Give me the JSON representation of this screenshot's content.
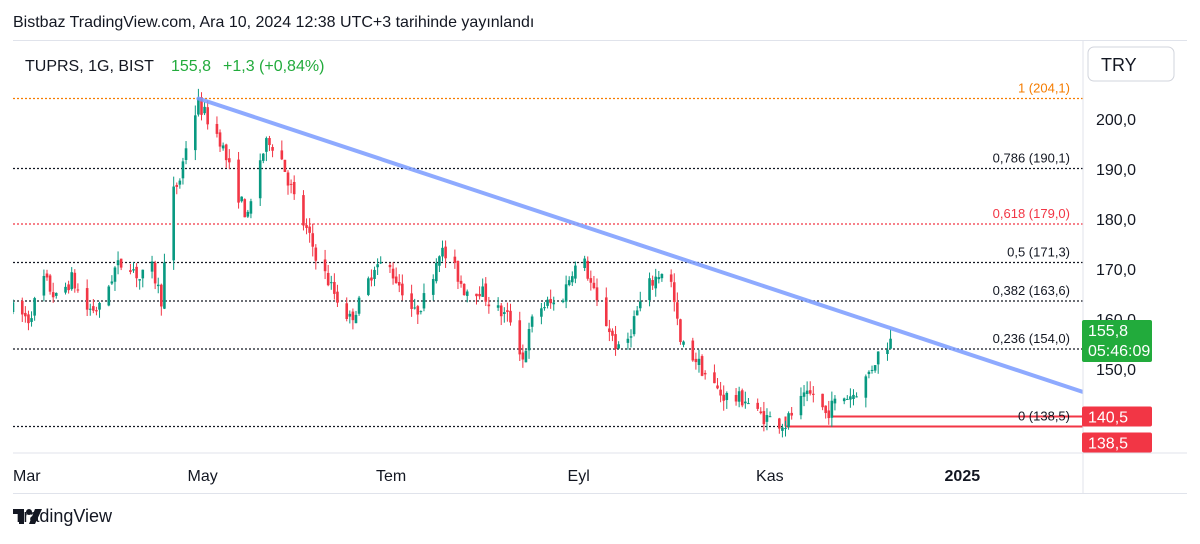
{
  "header": {
    "published": "Bistbaz TradingView.com, Ara 10, 2024 12:38 UTC+3 tarihinde yayınlandı"
  },
  "symbol": {
    "name": "TUPRS, 1G, BIST",
    "price": "155,8",
    "change": "+1,3 (+0,84%)"
  },
  "currency_button": "TRY",
  "footer": {
    "brand": "TradingView"
  },
  "colors": {
    "up": "#089981",
    "down": "#f23645",
    "trend": "#7b9cff",
    "fib_orange": "#f57c00",
    "fib_red": "#f23645",
    "price_badge": "#22ab3c",
    "label_red": "#f23645"
  },
  "chart_data": {
    "type": "candlestick",
    "yaxis": {
      "ticks": [
        "200,0",
        "190,0",
        "180,0",
        "170,0",
        "160,0",
        "150,0"
      ],
      "tick_values": [
        200,
        190,
        180,
        170,
        160,
        150
      ],
      "ylim": [
        132.5,
        214.5
      ]
    },
    "xaxis": {
      "labels": [
        {
          "label": "Mar",
          "date": "2024-03-01",
          "bold": false
        },
        {
          "label": "May",
          "date": "2024-05-01",
          "bold": false
        },
        {
          "label": "Tem",
          "date": "2024-07-01",
          "bold": false
        },
        {
          "label": "Eyl",
          "date": "2024-09-01",
          "bold": false
        },
        {
          "label": "Kas",
          "date": "2024-11-01",
          "bold": false
        },
        {
          "label": "2025",
          "date": "2025-01-01",
          "bold": true
        }
      ],
      "xlim": [
        "2024-03-01",
        "2025-02-22"
      ]
    },
    "fib_levels": [
      {
        "label": "1 (204,1)",
        "value": 204.1,
        "color": "#f57c00"
      },
      {
        "label": "0,786 (190,1)",
        "value": 190.1,
        "color": "#131722"
      },
      {
        "label": "0,618 (179,0)",
        "value": 179.0,
        "color": "#f23645"
      },
      {
        "label": "0,5 (171,3)",
        "value": 171.3,
        "color": "#131722"
      },
      {
        "label": "0,382 (163,6)",
        "value": 163.6,
        "color": "#131722"
      },
      {
        "label": "0,236 (154,0)",
        "value": 154.0,
        "color": "#131722"
      },
      {
        "label": "0 (138,5)",
        "value": 138.5,
        "color": "#131722"
      }
    ],
    "trendline": {
      "start": {
        "date": "2024-04-30",
        "value": 204.1
      },
      "end": {
        "date": "2025-02-22",
        "value": 143.0
      }
    },
    "support_lines": [
      {
        "start": "2024-11-06",
        "end": "2025-02-22",
        "value": 138.5
      },
      {
        "start": "2024-11-21",
        "end": "2025-02-22",
        "value": 140.5
      }
    ],
    "price_labels": [
      {
        "text": "155,8",
        "sub": "05:46:09",
        "value": 155.8,
        "color": "#22ab3c"
      },
      {
        "text": "140,5",
        "value": 140.5,
        "color": "#f23645"
      },
      {
        "text": "138,5",
        "value": 138.5,
        "color": "#f23645"
      }
    ],
    "close_path": [
      [
        "2024-03-01",
        162
      ],
      [
        "2024-03-06",
        160
      ],
      [
        "2024-03-11",
        168
      ],
      [
        "2024-03-15",
        164
      ],
      [
        "2024-03-20",
        168
      ],
      [
        "2024-03-25",
        162
      ],
      [
        "2024-03-29",
        162
      ],
      [
        "2024-04-03",
        170
      ],
      [
        "2024-04-07",
        172
      ],
      [
        "2024-04-11",
        168
      ],
      [
        "2024-04-15",
        170
      ],
      [
        "2024-04-18",
        164
      ],
      [
        "2024-04-21",
        184
      ],
      [
        "2024-04-24",
        188
      ],
      [
        "2024-04-27",
        198
      ],
      [
        "2024-04-30",
        203
      ],
      [
        "2024-05-03",
        200
      ],
      [
        "2024-05-07",
        196
      ],
      [
        "2024-05-11",
        188
      ],
      [
        "2024-05-16",
        180
      ],
      [
        "2024-05-20",
        192
      ],
      [
        "2024-05-23",
        196
      ],
      [
        "2024-05-27",
        192
      ],
      [
        "2024-06-01",
        182
      ],
      [
        "2024-06-05",
        176
      ],
      [
        "2024-06-09",
        170
      ],
      [
        "2024-06-14",
        164
      ],
      [
        "2024-06-18",
        160
      ],
      [
        "2024-06-22",
        164
      ],
      [
        "2024-06-26",
        171
      ],
      [
        "2024-07-01",
        170
      ],
      [
        "2024-07-05",
        166
      ],
      [
        "2024-07-09",
        161
      ],
      [
        "2024-07-13",
        165
      ],
      [
        "2024-07-17",
        174
      ],
      [
        "2024-07-21",
        171
      ],
      [
        "2024-07-25",
        166
      ],
      [
        "2024-07-30",
        166
      ],
      [
        "2024-08-04",
        162
      ],
      [
        "2024-08-09",
        160
      ],
      [
        "2024-08-13",
        152
      ],
      [
        "2024-08-17",
        162
      ],
      [
        "2024-08-21",
        163
      ],
      [
        "2024-08-25",
        163
      ],
      [
        "2024-08-29",
        170
      ],
      [
        "2024-09-02",
        171
      ],
      [
        "2024-09-06",
        163
      ],
      [
        "2024-09-10",
        158
      ],
      [
        "2024-09-14",
        152
      ],
      [
        "2024-09-18",
        160
      ],
      [
        "2024-09-22",
        166
      ],
      [
        "2024-09-26",
        169
      ],
      [
        "2024-09-29",
        171
      ],
      [
        "2024-10-03",
        155
      ],
      [
        "2024-10-08",
        152
      ],
      [
        "2024-10-12",
        148
      ],
      [
        "2024-10-16",
        145
      ],
      [
        "2024-10-20",
        144
      ],
      [
        "2024-10-24",
        144
      ],
      [
        "2024-10-28",
        141
      ],
      [
        "2024-11-01",
        140
      ],
      [
        "2024-11-06",
        139
      ],
      [
        "2024-11-10",
        143
      ],
      [
        "2024-11-15",
        145
      ],
      [
        "2024-11-19",
        141
      ],
      [
        "2024-11-23",
        144
      ],
      [
        "2024-11-28",
        145
      ],
      [
        "2024-12-02",
        148
      ],
      [
        "2024-12-06",
        153
      ],
      [
        "2024-12-10",
        155.8
      ]
    ]
  }
}
